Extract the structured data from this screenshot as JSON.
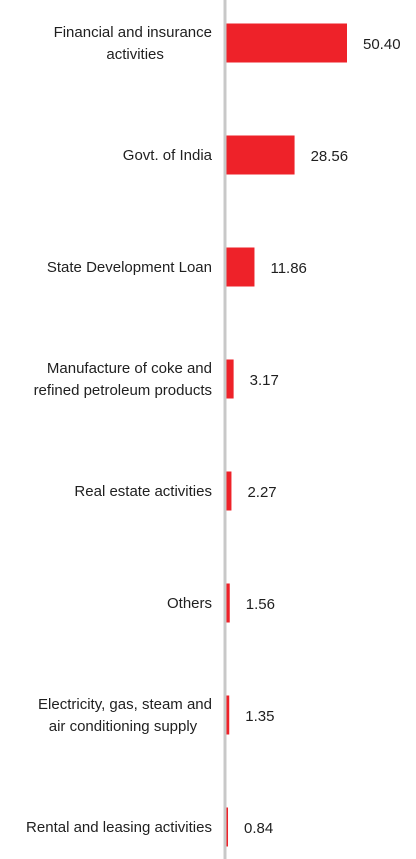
{
  "chart_data": {
    "type": "bar",
    "orientation": "horizontal",
    "categories": [
      [
        "Financial and insurance",
        "activities"
      ],
      [
        "Govt. of India"
      ],
      [
        "State Development Loan"
      ],
      [
        "Manufacture of coke and",
        "refined petroleum products"
      ],
      [
        "Real estate activities"
      ],
      [
        "Others"
      ],
      [
        "Electricity, gas, steam and",
        "air conditioning supply"
      ],
      [
        "Rental and leasing activities"
      ]
    ],
    "values": [
      50.4,
      28.56,
      11.86,
      3.17,
      2.27,
      1.56,
      1.35,
      0.84
    ],
    "value_labels": [
      "50.40",
      "28.56",
      "11.86",
      "3.17",
      "2.27",
      "1.56",
      "1.35",
      "0.84"
    ],
    "title": "",
    "xlabel": "",
    "ylabel": "",
    "xlim": [
      0,
      50.4
    ],
    "grid": false,
    "legend": "none",
    "bar_color": "#ee2229",
    "axis_color": "#c8c8c8"
  }
}
